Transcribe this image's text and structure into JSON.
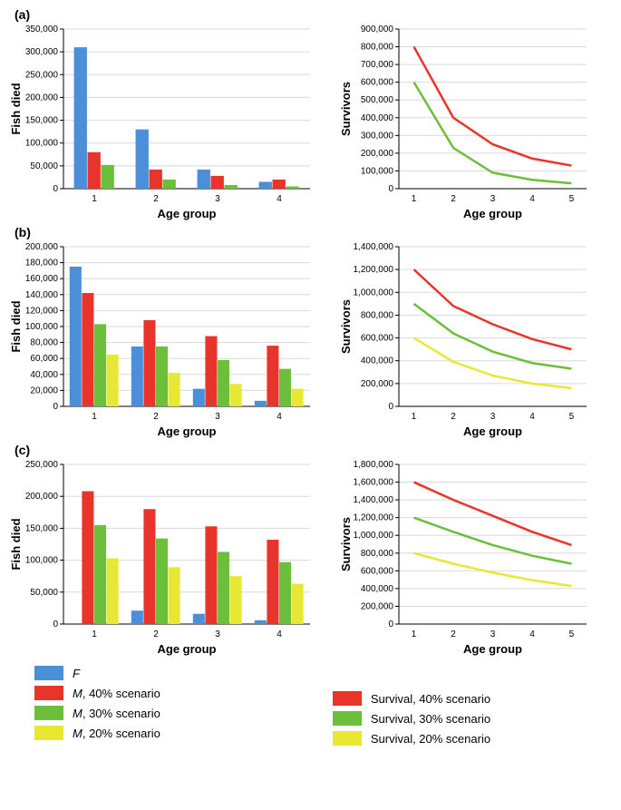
{
  "colors": {
    "F": "#4a8fd8",
    "M40": "#e8342b",
    "M30": "#6cbf3a",
    "M20": "#e8e834",
    "S40": "#e8342b",
    "S30": "#6cbf3a",
    "S20": "#e8e834",
    "axis": "#000000",
    "grid": "#d9d9d9",
    "bg": "#ffffff"
  },
  "typography": {
    "axis_label_fontsize": 13,
    "tick_fontsize": 10,
    "axis_label_weight": "bold"
  },
  "labels": {
    "x": "Age group",
    "y_bars": "Fish died",
    "y_lines": "Survivors",
    "panel_a": "(a)",
    "panel_b": "(b)",
    "panel_c": "(c)"
  },
  "legend_bars": [
    {
      "key": "F",
      "label": "F"
    },
    {
      "key": "M40",
      "label": "M, 40% scenario"
    },
    {
      "key": "M30",
      "label": "M, 30% scenario"
    },
    {
      "key": "M20",
      "label": "M, 20% scenario"
    }
  ],
  "legend_lines": [
    {
      "key": "S40",
      "label": "Survival, 40% scenario"
    },
    {
      "key": "S30",
      "label": "Survival, 30% scenario"
    },
    {
      "key": "S20",
      "label": "Survival, 20% scenario"
    }
  ],
  "panels": {
    "a": {
      "bar": {
        "type": "bar",
        "categories": [
          "1",
          "2",
          "3",
          "4"
        ],
        "series": [
          {
            "key": "F",
            "values": [
              310000,
              130000,
              42000,
              15000
            ]
          },
          {
            "key": "M40",
            "values": [
              80000,
              42000,
              28000,
              20000
            ]
          },
          {
            "key": "M30",
            "values": [
              52000,
              20000,
              8000,
              5000
            ]
          }
        ],
        "ylim": [
          0,
          350000
        ],
        "ytick_step": 50000,
        "bar_width": 0.22,
        "group_gap": 0.14
      },
      "line": {
        "type": "line",
        "x": [
          "1",
          "2",
          "3",
          "4",
          "5"
        ],
        "series": [
          {
            "key": "S40",
            "values": [
              800000,
              400000,
              250000,
              170000,
              130000
            ]
          },
          {
            "key": "S30",
            "values": [
              600000,
              230000,
              90000,
              50000,
              30000
            ]
          }
        ],
        "ylim": [
          0,
          900000
        ],
        "ytick_step": 100000,
        "line_width": 2.5
      }
    },
    "b": {
      "bar": {
        "type": "bar",
        "categories": [
          "1",
          "2",
          "3",
          "4"
        ],
        "series": [
          {
            "key": "F",
            "values": [
              175000,
              75000,
              22000,
              7000
            ]
          },
          {
            "key": "M40",
            "values": [
              142000,
              108000,
              88000,
              76000
            ]
          },
          {
            "key": "M30",
            "values": [
              103000,
              75000,
              58000,
              47000
            ]
          },
          {
            "key": "M20",
            "values": [
              65000,
              42000,
              28000,
              22000
            ]
          }
        ],
        "ylim": [
          0,
          200000
        ],
        "ytick_step": 20000,
        "bar_width": 0.2,
        "group_gap": 0.1
      },
      "line": {
        "type": "line",
        "x": [
          "1",
          "2",
          "3",
          "4",
          "5"
        ],
        "series": [
          {
            "key": "S40",
            "values": [
              1200000,
              880000,
              720000,
              590000,
              500000
            ]
          },
          {
            "key": "S30",
            "values": [
              900000,
              640000,
              480000,
              380000,
              330000
            ]
          },
          {
            "key": "S20",
            "values": [
              600000,
              390000,
              270000,
              200000,
              160000
            ]
          }
        ],
        "ylim": [
          0,
          1400000
        ],
        "ytick_step": 200000,
        "line_width": 2.5
      }
    },
    "c": {
      "bar": {
        "type": "bar",
        "categories": [
          "1",
          "2",
          "3",
          "4"
        ],
        "series": [
          {
            "key": "F",
            "values": [
              0,
              21000,
              16000,
              6000
            ]
          },
          {
            "key": "M40",
            "values": [
              208000,
              180000,
              153000,
              132000
            ]
          },
          {
            "key": "M30",
            "values": [
              155000,
              134000,
              113000,
              97000
            ]
          },
          {
            "key": "M20",
            "values": [
              103000,
              89000,
              75000,
              63000
            ]
          }
        ],
        "ylim": [
          0,
          250000
        ],
        "ytick_step": 50000,
        "bar_width": 0.2,
        "group_gap": 0.1
      },
      "line": {
        "type": "line",
        "x": [
          "1",
          "2",
          "3",
          "4",
          "5"
        ],
        "series": [
          {
            "key": "S40",
            "values": [
              1600000,
              1400000,
              1220000,
              1040000,
              890000
            ]
          },
          {
            "key": "S30",
            "values": [
              1200000,
              1040000,
              890000,
              770000,
              680000
            ]
          },
          {
            "key": "S20",
            "values": [
              800000,
              680000,
              580000,
              495000,
              430000
            ]
          }
        ],
        "ylim": [
          0,
          1800000
        ],
        "ytick_step": 200000,
        "line_width": 2.5
      }
    }
  }
}
